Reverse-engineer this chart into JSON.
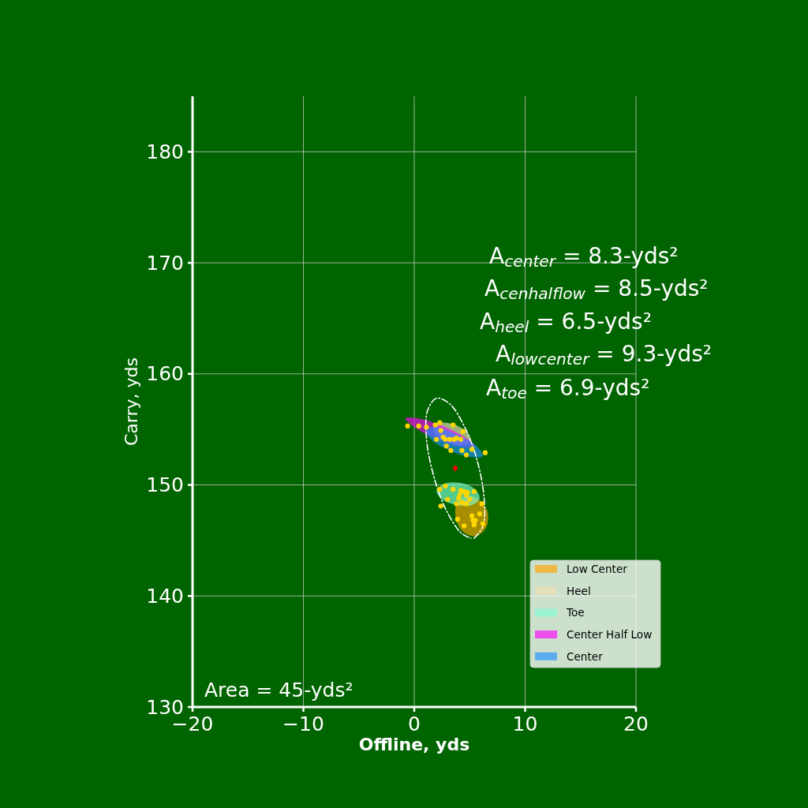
{
  "chart_data": {
    "type": "scatter",
    "xlabel": "Offline, yds",
    "ylabel": "Carry, yds",
    "annotations": [
      "A$_{center}$ = 8.3-yds²",
      "A$_{cenhalflow}$ = 8.5-yds²",
      "A$_{heel}$ = 6.5-yds²",
      "A$_{lowcenter}$ = 9.3-yds²",
      "A$_{toe}$ = 6.9-yds²",
      "Area = 45-yds²"
    ],
    "xlim": [
      -20,
      20
    ],
    "ylim": [
      130,
      185
    ],
    "xticks": [
      {
        "value": -20,
        "label": "−20"
      },
      {
        "value": -10,
        "label": "−10"
      },
      0,
      10,
      20
    ],
    "yticks": [
      130,
      140,
      150,
      160,
      170,
      180
    ],
    "grid": true,
    "legend": "bottom right",
    "series": [
      {
        "name": "Low Center",
        "type": "area",
        "color": "#ffa500",
        "x": [
          5.6,
          6.5,
          6.6,
          5.8,
          4.7,
          3.8,
          3.8,
          4.5
        ],
        "values": [
          145.4,
          146.2,
          147.6,
          148.7,
          149.0,
          148.2,
          146.8,
          145.7
        ]
      },
      {
        "name": "Heel",
        "type": "area",
        "color": "#f5deb3",
        "x": [
          5.1,
          4.8,
          3.7,
          2.4,
          1.7,
          2.0,
          3.1,
          4.4
        ],
        "values": [
          154.0,
          154.7,
          155.4,
          155.6,
          155.2,
          154.5,
          153.8,
          153.6
        ]
      },
      {
        "name": "Toe",
        "type": "area",
        "color": "#7fffd4",
        "x": [
          5.9,
          5.5,
          4.1,
          2.7,
          2.0,
          2.5,
          3.8,
          5.2
        ],
        "values": [
          148.8,
          149.6,
          150.2,
          150.1,
          149.5,
          148.7,
          148.2,
          148.2
        ]
      },
      {
        "name": "Center Half Low",
        "type": "area",
        "color": "#ff00ff",
        "x": [
          5.5,
          4.7,
          2.6,
          0.3,
          -0.8,
          0.0,
          2.1,
          4.4
        ],
        "values": [
          153.5,
          154.2,
          155.3,
          156.0,
          156.0,
          155.2,
          154.1,
          153.4
        ]
      },
      {
        "name": "Center",
        "type": "area",
        "color": "#1e90ff",
        "x": [
          6.2,
          5.6,
          3.9,
          2.0,
          1.0,
          1.5,
          3.2,
          5.2
        ],
        "values": [
          152.6,
          153.5,
          154.5,
          155.2,
          155.0,
          154.1,
          153.1,
          152.5
        ]
      },
      {
        "type": "line",
        "color": "#ffffff",
        "line_style": "dashed",
        "x": [
          5.4,
          6.2,
          6.3,
          5.7,
          4.6,
          3.2,
          2.0,
          1.2,
          1.1,
          1.7,
          2.8,
          4.2,
          5.1
        ],
        "values": [
          145.2,
          146.3,
          148.8,
          152.1,
          155.1,
          157.3,
          157.8,
          156.7,
          154.2,
          151.0,
          147.9,
          145.7,
          145.2
        ]
      },
      {
        "color": "#ffd700",
        "marker": "circle",
        "x": [
          -0.6,
          0.4,
          1.1,
          1.9,
          2.3,
          3.5,
          2.4,
          4.4,
          2.0,
          2.6,
          2.8,
          4.2,
          2.9,
          3.3,
          4.3,
          4.7,
          6.4,
          3.2,
          3.6,
          3.8,
          5.2,
          2.8,
          2.3,
          3.5,
          4.2,
          4.5,
          4.8,
          5.4,
          4.7,
          4.1,
          4.0,
          3.0,
          5.0,
          4.3,
          3.8,
          4.7,
          6.1,
          2.4,
          5.9,
          5.2,
          5.3,
          5.5,
          3.9,
          5.4,
          6.2,
          4.5
        ],
        "values": [
          155.3,
          155.3,
          155.2,
          155.4,
          155.6,
          155.4,
          154.9,
          154.8,
          154.1,
          154.3,
          154.1,
          154.1,
          153.5,
          153.1,
          153.1,
          152.7,
          152.9,
          154.1,
          154.1,
          154.2,
          153.2,
          149.9,
          149.6,
          149.6,
          149.5,
          149.4,
          149.3,
          149.4,
          149.1,
          149.1,
          148.8,
          148.7,
          148.7,
          148.4,
          148.3,
          148.3,
          148.3,
          148.1,
          147.4,
          147.2,
          146.8,
          146.8,
          146.9,
          146.4,
          146.5,
          146.3
        ]
      },
      {
        "color": "#ff0000",
        "marker": "diamond",
        "x": [
          3.7
        ],
        "values": [
          151.5
        ]
      }
    ]
  }
}
